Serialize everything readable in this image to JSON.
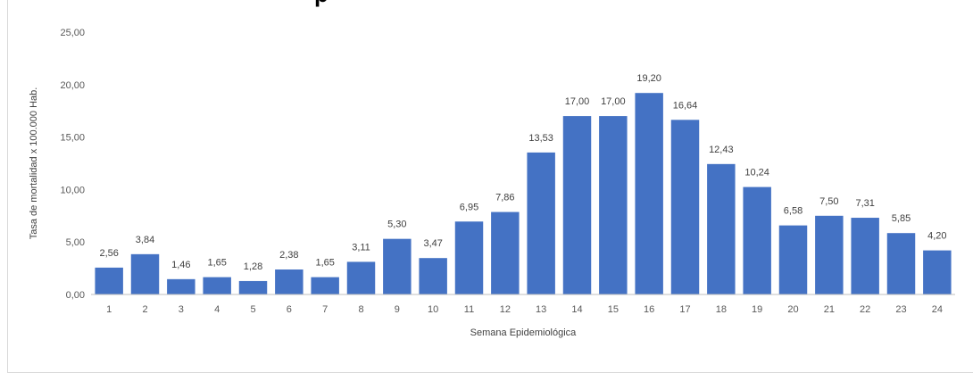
{
  "chart_data": {
    "type": "bar",
    "title": "p",
    "xlabel": "Semana Epidemiológica",
    "ylabel": "Tasa de mortalidad x 100.000 Hab.",
    "categories": [
      "1",
      "2",
      "3",
      "4",
      "5",
      "6",
      "7",
      "8",
      "9",
      "10",
      "11",
      "12",
      "13",
      "14",
      "15",
      "16",
      "17",
      "18",
      "19",
      "20",
      "21",
      "22",
      "23",
      "24"
    ],
    "values": [
      2.56,
      3.84,
      1.46,
      1.65,
      1.28,
      2.38,
      1.65,
      3.11,
      5.3,
      3.47,
      6.95,
      7.86,
      13.53,
      17.0,
      17.0,
      19.2,
      16.64,
      12.43,
      10.24,
      6.58,
      7.5,
      7.31,
      5.85,
      4.2
    ],
    "value_labels": [
      "2,56",
      "3,84",
      "1,46",
      "1,65",
      "1,28",
      "2,38",
      "1,65",
      "3,11",
      "5,30",
      "3,47",
      "6,95",
      "7,86",
      "13,53",
      "17,00",
      "17,00",
      "19,20",
      "16,64",
      "12,43",
      "10,24",
      "6,58",
      "7,50",
      "7,31",
      "5,85",
      "4,20"
    ],
    "ylim": [
      0,
      25
    ],
    "yticks": [
      0,
      5,
      10,
      15,
      20,
      25
    ],
    "ytick_labels": [
      "0,00",
      "5,00",
      "10,00",
      "15,00",
      "20,00",
      "25,00"
    ],
    "bar_color": "#4472c4",
    "grid": false,
    "legend": "none"
  }
}
